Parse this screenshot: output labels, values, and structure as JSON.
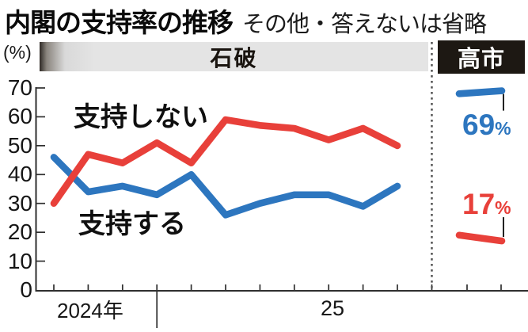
{
  "header": {
    "title": "内閣の支持率の推移",
    "subtitle": "その他・答えないは省略"
  },
  "chart_data": {
    "type": "line",
    "title": "内閣の支持率の推移",
    "subtitle": "その他・答えないは省略",
    "ylabel": "(%)",
    "ylim": [
      0,
      70
    ],
    "yticks": [
      0,
      10,
      20,
      30,
      40,
      50,
      60,
      70
    ],
    "grid": false,
    "x_year_labels": [
      {
        "text": "2024年"
      },
      {
        "text": "25"
      }
    ],
    "period_bands": [
      {
        "label": "石破",
        "style": "gray-band"
      },
      {
        "label": "高市",
        "style": "black-box"
      }
    ],
    "series": [
      {
        "name": "支持する",
        "color": "#2d76bf",
        "values_ishiba": [
          46,
          34,
          36,
          33,
          40,
          26,
          30,
          33,
          33,
          29,
          36
        ],
        "values_takaichi": [
          68,
          69
        ],
        "callout_value": "69",
        "callout_unit": "%"
      },
      {
        "name": "支持しない",
        "color": "#e8403a",
        "values_ishiba": [
          30,
          47,
          44,
          51,
          44,
          59,
          57,
          56,
          52,
          56,
          50
        ],
        "values_takaichi": [
          19,
          17
        ],
        "callout_value": "17",
        "callout_unit": "%"
      }
    ],
    "axis_color": "#2f2f2f",
    "divider_style": "dotted"
  }
}
